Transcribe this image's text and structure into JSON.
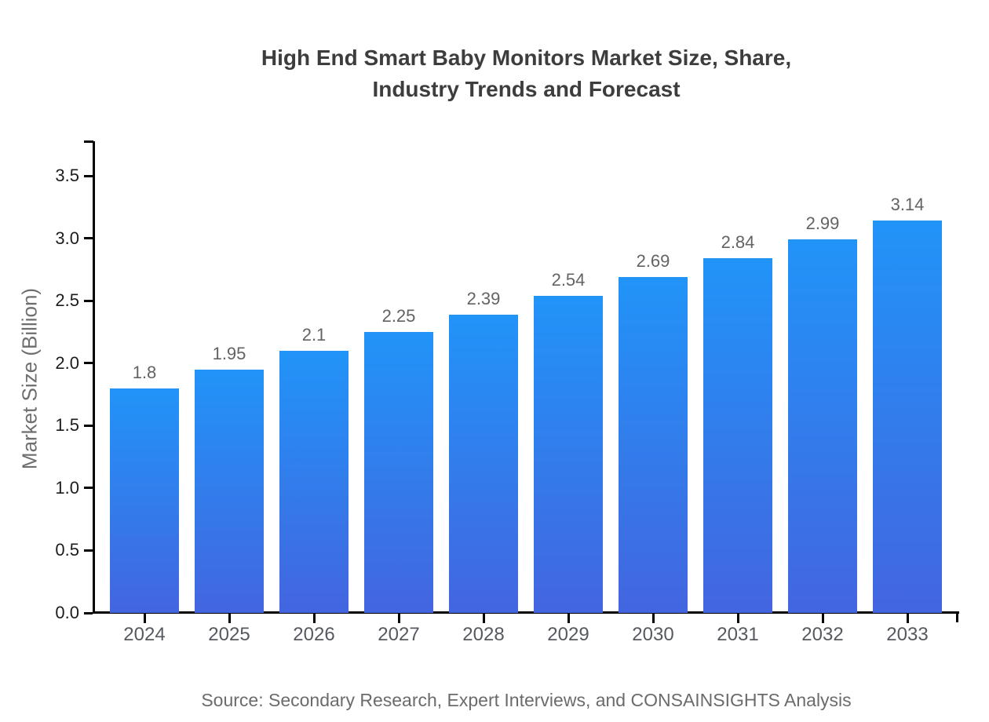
{
  "title": {
    "line1": "High End Smart Baby Monitors Market Size, Share,",
    "line2": "Industry Trends and Forecast"
  },
  "source_text": "Source: Secondary Research, Expert Interviews, and CONSAINSIGHTS Analysis",
  "chart_data": {
    "type": "bar",
    "title": "High End Smart Baby Monitors Market Size, Share, Industry Trends and Forecast",
    "xlabel": "",
    "ylabel": "Market Size (Billion)",
    "categories": [
      "2024",
      "2025",
      "2026",
      "2027",
      "2028",
      "2029",
      "2030",
      "2031",
      "2032",
      "2033"
    ],
    "values": [
      1.8,
      1.95,
      2.1,
      2.25,
      2.39,
      2.54,
      2.69,
      2.84,
      2.99,
      3.14
    ],
    "value_labels": [
      "1.8",
      "1.95",
      "2.1",
      "2.25",
      "2.39",
      "2.54",
      "2.69",
      "2.84",
      "2.99",
      "3.14"
    ],
    "ylim": [
      0,
      3.78
    ],
    "yticks": [
      0.0,
      0.5,
      1.0,
      1.5,
      2.0,
      2.5,
      3.0,
      3.5
    ],
    "ytick_labels": [
      "0.0",
      "0.5",
      "1.0",
      "1.5",
      "2.0",
      "2.5",
      "3.0",
      "3.5"
    ],
    "grid": false,
    "legend": false,
    "bar_color_top": "#2194f8",
    "bar_color_bottom": "#4365e0",
    "axis_color": "#000000"
  }
}
